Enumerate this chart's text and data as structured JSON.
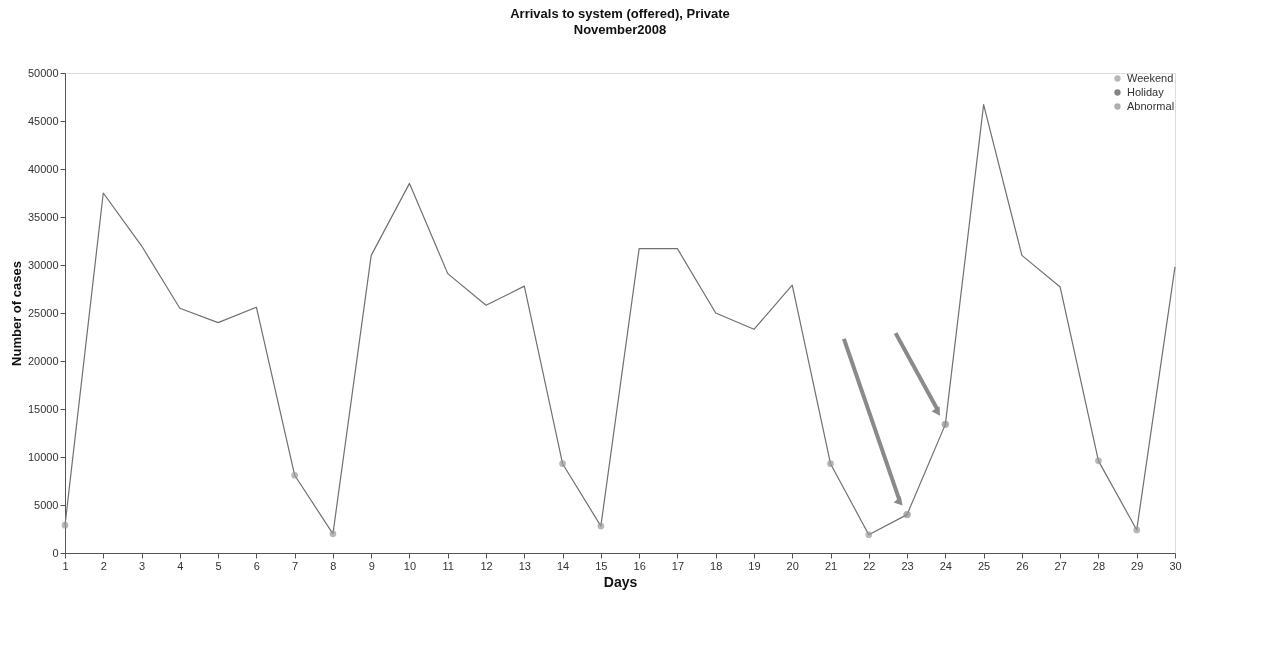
{
  "chart_data": {
    "type": "line",
    "title": "Arrivals to system (offered), Private",
    "subtitle": "November2008",
    "xlabel": "Days",
    "ylabel": "Number of cases",
    "x": [
      1,
      2,
      3,
      4,
      5,
      6,
      7,
      8,
      9,
      10,
      11,
      12,
      13,
      14,
      15,
      16,
      17,
      18,
      19,
      20,
      21,
      22,
      23,
      24,
      25,
      26,
      27,
      28,
      29,
      30
    ],
    "xlim": [
      1,
      30
    ],
    "xticks": [
      1,
      2,
      3,
      4,
      5,
      6,
      7,
      8,
      9,
      10,
      11,
      12,
      13,
      14,
      15,
      16,
      17,
      18,
      19,
      20,
      21,
      22,
      23,
      24,
      25,
      26,
      27,
      28,
      29,
      30
    ],
    "ylim": [
      0,
      50000
    ],
    "yticks": [
      0,
      5000,
      10000,
      15000,
      20000,
      25000,
      30000,
      35000,
      40000,
      45000,
      50000
    ],
    "grid": false,
    "legend": "top right",
    "marker": "none",
    "line_style": "solid",
    "series": [
      {
        "color": "#707070",
        "values": [
          2900,
          37500,
          32000,
          25500,
          24000,
          25600,
          8100,
          2000,
          31000,
          38500,
          29100,
          25800,
          27800,
          9300,
          2800,
          31700,
          31700,
          25000,
          23300,
          27900,
          9300,
          1900,
          4000,
          13400,
          46700,
          31000,
          27700,
          9600,
          2400,
          29800
        ]
      },
      {
        "type": "scatter",
        "name": "Weekend",
        "color": "#9a9a9a",
        "values": [
          2900,
          null,
          null,
          null,
          null,
          null,
          8100,
          2000,
          null,
          null,
          null,
          null,
          null,
          9300,
          2800,
          null,
          null,
          null,
          null,
          null,
          9300,
          1900,
          null,
          null,
          null,
          null,
          null,
          9600,
          2400,
          null
        ]
      },
      {
        "type": "scatter",
        "name": "Holiday",
        "color": "#505050",
        "values": [
          null,
          null,
          null,
          null,
          null,
          null,
          null,
          null,
          null,
          null,
          null,
          null,
          null,
          null,
          null,
          null,
          null,
          null,
          null,
          null,
          null,
          null,
          null,
          null,
          null,
          null,
          null,
          null,
          null,
          null
        ]
      },
      {
        "type": "scatter",
        "name": "Abnormal",
        "color": "#8c8c8c",
        "values": [
          null,
          null,
          null,
          null,
          null,
          null,
          null,
          null,
          null,
          null,
          null,
          null,
          null,
          null,
          null,
          null,
          null,
          null,
          null,
          null,
          null,
          null,
          4000,
          13400,
          null,
          null,
          null,
          null,
          null,
          null
        ]
      }
    ]
  }
}
